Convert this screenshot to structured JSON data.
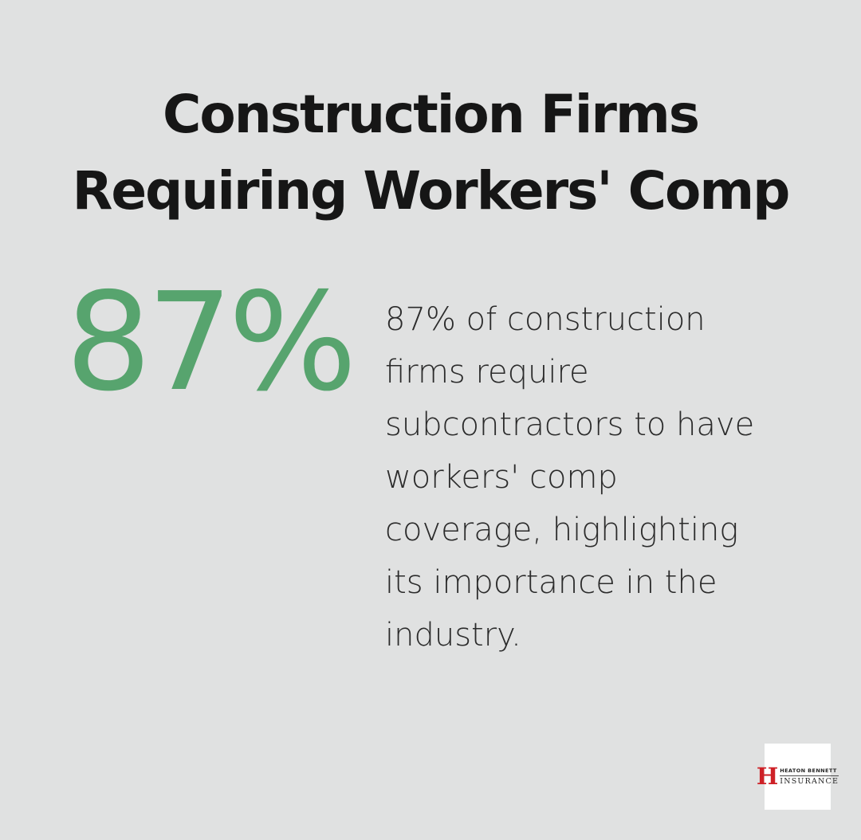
{
  "theme": {
    "background": "#e0e1e1",
    "accent_green": "#57a46e",
    "logo_red": "#ce2127",
    "text_dark": "#161616"
  },
  "title": {
    "full": "Construction Firms Requiring Workers' Comp",
    "line1": "Construction Firms",
    "line2": "Requiring Workers' Comp"
  },
  "stat": {
    "value": "87%",
    "description": "87% of construction firms require subcontractors to have workers' comp coverage, highlighting its importance in the industry.",
    "description_lines": [
      "87% of construction",
      "firms require",
      "subcontractors to have",
      "workers' comp",
      "coverage, highlighting",
      "its importance in the",
      "industry."
    ]
  },
  "logo": {
    "monogram": "H",
    "name_top": "HEATON BENNETT",
    "name_bottom": "INSURANCE"
  }
}
